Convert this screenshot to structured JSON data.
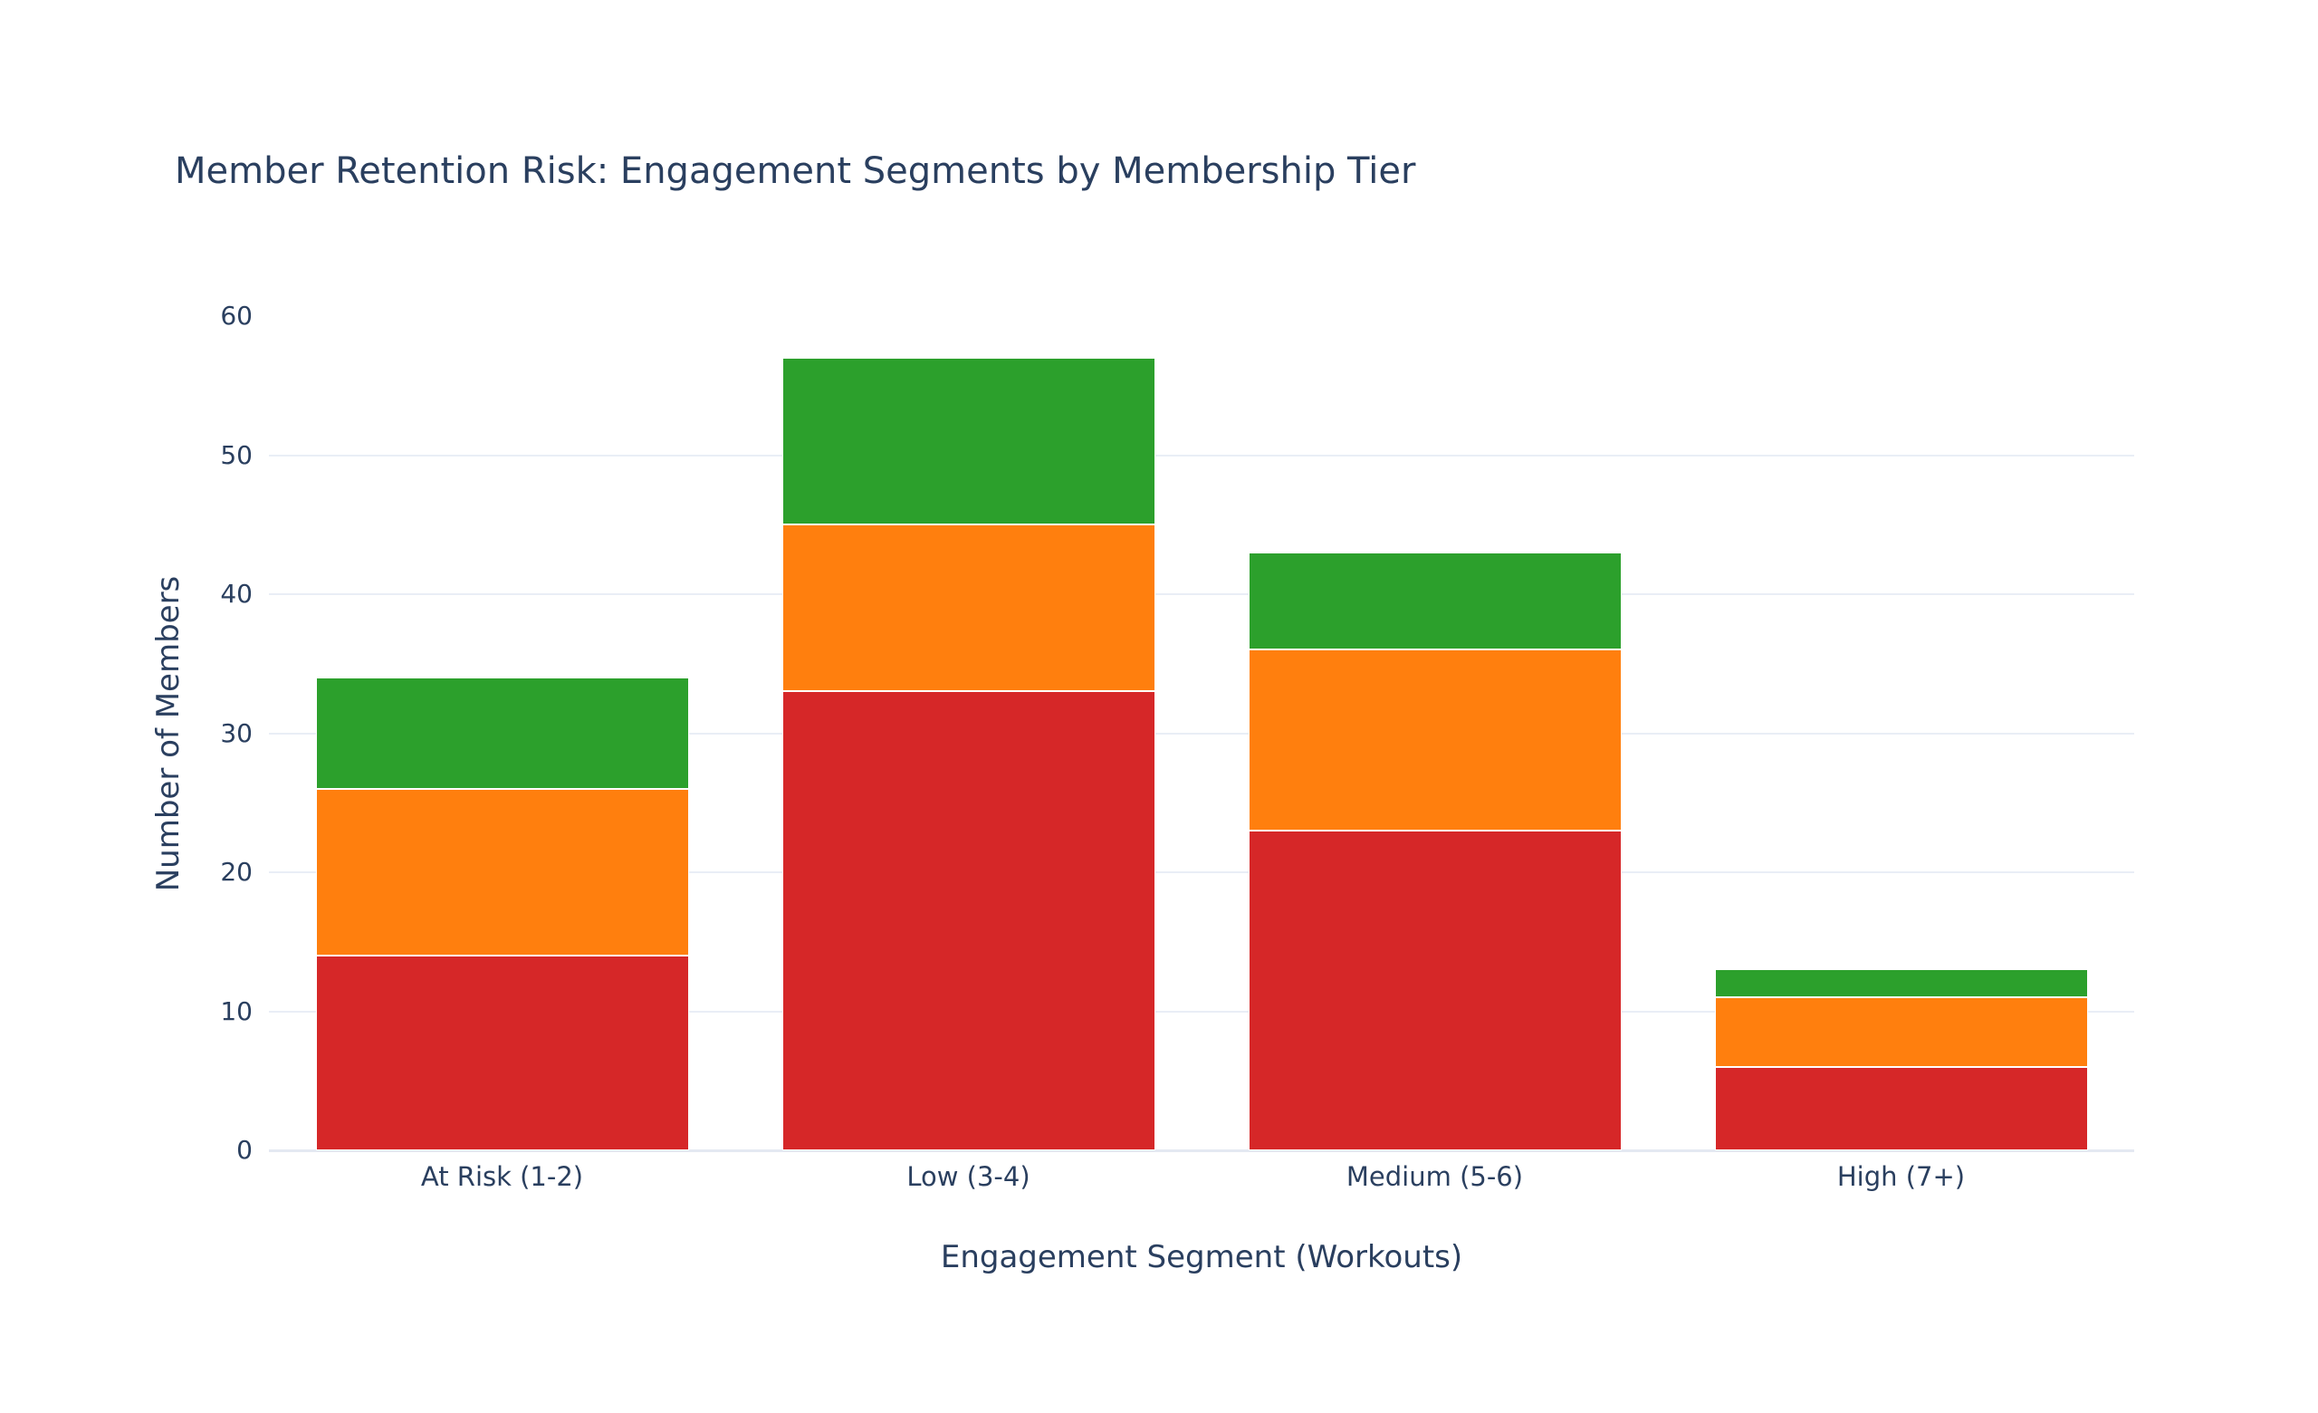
{
  "chart_data": {
    "type": "bar",
    "stacked": true,
    "title": "Member Retention Risk: Engagement Segments by Membership Tier",
    "xlabel": "Engagement Segment (Workouts)",
    "ylabel": "Number of Members",
    "categories": [
      "At Risk (1-2)",
      "Low (3-4)",
      "Medium (5-6)",
      "High (7+)"
    ],
    "series": [
      {
        "name": "red-bottom-segment",
        "color": "#d62728",
        "values": [
          14,
          33,
          23,
          6
        ]
      },
      {
        "name": "orange-middle-segment",
        "color": "#ff7f0e",
        "values": [
          12,
          12,
          13,
          5
        ]
      },
      {
        "name": "green-top-segment",
        "color": "#2ca02c",
        "values": [
          8,
          12,
          7,
          2
        ]
      }
    ],
    "stack_totals": [
      34,
      57,
      43,
      13
    ],
    "ylim": [
      0,
      60
    ],
    "yticks": [
      0,
      10,
      20,
      30,
      40,
      50,
      60
    ],
    "grid": true,
    "legend_position": "none"
  },
  "style": {
    "background": "#ffffff",
    "text_color": "#2a3f5f",
    "grid_color": "#e9eef6",
    "zero_line_color": "#e4e9f2",
    "bar_separator_color": "#ffffff"
  }
}
